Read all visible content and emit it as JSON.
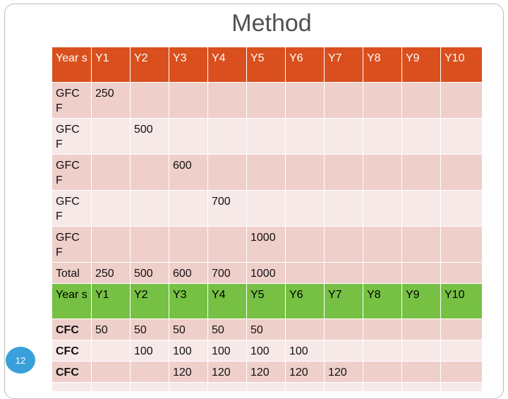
{
  "title": "Method",
  "slide_number": "12",
  "header": [
    "Year s",
    "Y1",
    "Y2",
    "Y3",
    "Y4",
    "Y5",
    "Y6",
    "Y7",
    "Y8",
    "Y9",
    "Y10"
  ],
  "gfcf_rows": [
    [
      "GFC F",
      "250",
      "",
      "",
      "",
      "",
      "",
      "",
      "",
      "",
      ""
    ],
    [
      "GFC F",
      "",
      "500",
      "",
      "",
      "",
      "",
      "",
      "",
      "",
      ""
    ],
    [
      "GFC F",
      "",
      "",
      "600",
      "",
      "",
      "",
      "",
      "",
      "",
      ""
    ],
    [
      "GFC F",
      "",
      "",
      "",
      "700",
      "",
      "",
      "",
      "",
      "",
      ""
    ],
    [
      "GFC F",
      "",
      "",
      "",
      "",
      "1000",
      "",
      "",
      "",
      "",
      ""
    ],
    [
      "Total",
      "250",
      "500",
      "600",
      "700",
      "1000",
      "",
      "",
      "",
      "",
      ""
    ]
  ],
  "header2": [
    "Year s",
    "Y1",
    "Y2",
    "Y3",
    "Y4",
    "Y5",
    "Y6",
    "Y7",
    "Y8",
    "Y9",
    "Y10"
  ],
  "cfc_rows": [
    [
      "CFC",
      "50",
      "50",
      "50",
      "50",
      "50",
      "",
      "",
      "",
      "",
      ""
    ],
    [
      "CFC",
      "",
      "100",
      "100",
      "100",
      "100",
      "100",
      "",
      "",
      "",
      ""
    ],
    [
      "CFC",
      "",
      "",
      "120",
      "120",
      "120",
      "120",
      "120",
      "",
      "",
      ""
    ]
  ],
  "colors": {
    "header_bg": "#d9501e",
    "header2_bg": "#76c043",
    "row_dark": "#efcfca",
    "row_light": "#f7e9e7",
    "slide_num_bg": "#3aa0dc"
  }
}
